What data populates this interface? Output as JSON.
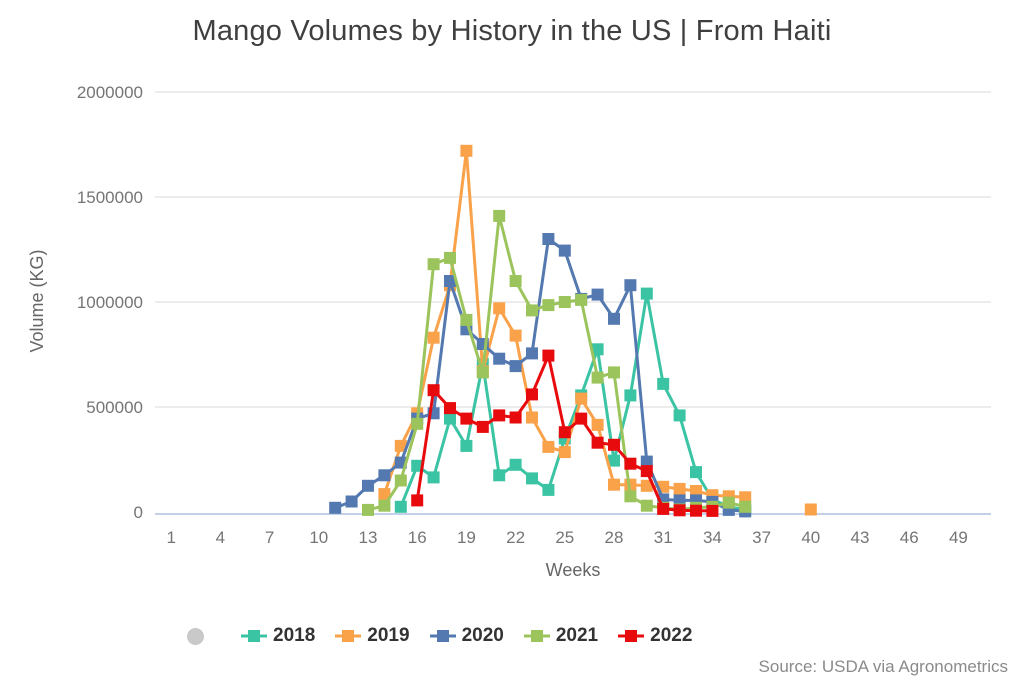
{
  "title": "Mango Volumes by History in the US | From Haiti",
  "source": "Source: USDA via Agronometrics",
  "chart_data": {
    "type": "line",
    "title": "Mango Volumes by History in the US | From Haiti",
    "xlabel": "Weeks",
    "ylabel": "Volume (KG)",
    "xlim": [
      0,
      51
    ],
    "ylim": [
      0,
      2000000
    ],
    "grid": "horizontal",
    "legend_position": "bottom",
    "marker": "square",
    "line_width": 3,
    "x_ticks": [
      1,
      4,
      7,
      10,
      13,
      16,
      19,
      22,
      25,
      28,
      31,
      34,
      37,
      40,
      43,
      46,
      49
    ],
    "y_ticks": {
      "values": [
        0,
        500000,
        1000000,
        1500000,
        2000000
      ],
      "labels": [
        "0",
        "500000",
        "1000000",
        "1500000",
        "2000000"
      ]
    },
    "series": [
      {
        "name": "2018",
        "color": "#3BC4A4",
        "points": [
          [
            15,
            25000
          ],
          [
            16,
            220000
          ],
          [
            17,
            165000
          ],
          [
            18,
            445000
          ],
          [
            19,
            315000
          ],
          [
            20,
            705000
          ],
          [
            21,
            175000
          ],
          [
            22,
            225000
          ],
          [
            23,
            160000
          ],
          [
            24,
            105000
          ],
          [
            25,
            350000
          ],
          [
            26,
            555000
          ],
          [
            27,
            775000
          ],
          [
            28,
            245000
          ],
          [
            29,
            555000
          ],
          [
            30,
            1040000
          ],
          [
            31,
            610000
          ],
          [
            32,
            460000
          ],
          [
            33,
            190000
          ],
          [
            34,
            60000
          ],
          [
            35,
            25000
          ],
          [
            36,
            10000
          ]
        ]
      },
      {
        "name": "2019",
        "color": "#F9A24A",
        "points": [
          [
            14,
            85000
          ],
          [
            15,
            315000
          ],
          [
            16,
            470000
          ],
          [
            17,
            830000
          ],
          [
            18,
            1080000
          ],
          [
            19,
            1720000
          ],
          [
            20,
            670000
          ],
          [
            21,
            970000
          ],
          [
            22,
            840000
          ],
          [
            23,
            450000
          ],
          [
            24,
            310000
          ],
          [
            25,
            285000
          ],
          [
            26,
            540000
          ],
          [
            27,
            415000
          ],
          [
            28,
            130000
          ],
          [
            29,
            130000
          ],
          [
            30,
            125000
          ],
          [
            31,
            120000
          ],
          [
            32,
            110000
          ],
          [
            33,
            100000
          ],
          [
            34,
            80000
          ],
          [
            35,
            75000
          ],
          [
            36,
            70000
          ],
          [
            40,
            12000
          ]
        ]
      },
      {
        "name": "2020",
        "color": "#5379B0",
        "points": [
          [
            11,
            20000
          ],
          [
            12,
            50000
          ],
          [
            13,
            125000
          ],
          [
            14,
            175000
          ],
          [
            15,
            235000
          ],
          [
            16,
            445000
          ],
          [
            17,
            470000
          ],
          [
            18,
            1100000
          ],
          [
            19,
            870000
          ],
          [
            20,
            800000
          ],
          [
            21,
            730000
          ],
          [
            22,
            695000
          ],
          [
            23,
            755000
          ],
          [
            24,
            1300000
          ],
          [
            25,
            1245000
          ],
          [
            26,
            1015000
          ],
          [
            27,
            1035000
          ],
          [
            28,
            920000
          ],
          [
            29,
            1080000
          ],
          [
            30,
            240000
          ],
          [
            31,
            60000
          ],
          [
            32,
            55000
          ],
          [
            33,
            55000
          ],
          [
            34,
            48000
          ],
          [
            35,
            10000
          ],
          [
            36,
            3000
          ]
        ]
      },
      {
        "name": "2021",
        "color": "#9CC45C",
        "points": [
          [
            13,
            10000
          ],
          [
            14,
            30000
          ],
          [
            15,
            150000
          ],
          [
            16,
            420000
          ],
          [
            17,
            1180000
          ],
          [
            18,
            1210000
          ],
          [
            19,
            915000
          ],
          [
            20,
            665000
          ],
          [
            21,
            1410000
          ],
          [
            22,
            1100000
          ],
          [
            23,
            960000
          ],
          [
            24,
            985000
          ],
          [
            25,
            1000000
          ],
          [
            26,
            1010000
          ],
          [
            27,
            640000
          ],
          [
            28,
            665000
          ],
          [
            29,
            75000
          ],
          [
            30,
            30000
          ],
          [
            31,
            20000
          ],
          [
            32,
            12000
          ],
          [
            33,
            20000
          ],
          [
            34,
            25000
          ],
          [
            35,
            45000
          ],
          [
            36,
            25000
          ]
        ]
      },
      {
        "name": "2022",
        "color": "#E80B0E",
        "points": [
          [
            16,
            55000
          ],
          [
            17,
            580000
          ],
          [
            18,
            495000
          ],
          [
            19,
            445000
          ],
          [
            20,
            405000
          ],
          [
            21,
            460000
          ],
          [
            22,
            450000
          ],
          [
            23,
            560000
          ],
          [
            24,
            745000
          ],
          [
            25,
            380000
          ],
          [
            26,
            445000
          ],
          [
            27,
            330000
          ],
          [
            28,
            320000
          ],
          [
            29,
            230000
          ],
          [
            30,
            195000
          ],
          [
            31,
            15000
          ],
          [
            32,
            8000
          ],
          [
            33,
            6000
          ],
          [
            34,
            5000
          ]
        ]
      }
    ],
    "style": {
      "gridline_color": "#ececec",
      "axis_line_color": "#c3d1e8",
      "tick_label_color": "#757575",
      "title_color": "#3f3f3f",
      "legend_text_color": "#333333",
      "source_color": "#8a8a8a",
      "legend_circle_color": "#c9c9c9"
    }
  }
}
